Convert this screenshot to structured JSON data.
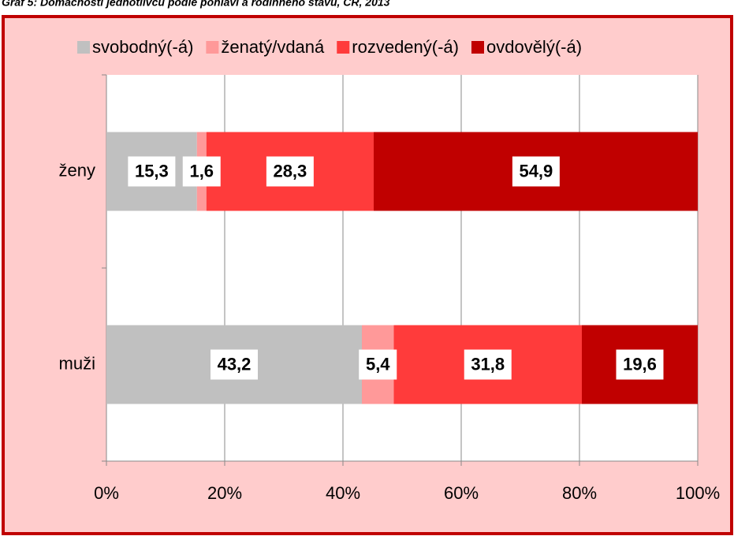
{
  "chart_data": {
    "type": "stacked_bar_horizontal",
    "title": "Graf 5: Domácnosti jednotlivců podle pohlaví a rodinného stavu, ČR, 2013",
    "categories": [
      "ženy",
      "muži"
    ],
    "series": [
      {
        "name": "svobodný(-á)",
        "color": "#c0c0c0",
        "values": [
          15.3,
          43.2
        ],
        "value_labels": [
          "15,3",
          "43,2"
        ]
      },
      {
        "name": "ženatý/vdaná",
        "color": "#ff9999",
        "values": [
          1.6,
          5.4
        ],
        "value_labels": [
          "1,6",
          "5,4"
        ]
      },
      {
        "name": "rozvedený(-á)",
        "color": "#ff3b3b",
        "values": [
          28.3,
          31.8
        ],
        "value_labels": [
          "28,3",
          "31,8"
        ]
      },
      {
        "name": "ovdovělý(-á)",
        "color": "#c00000",
        "values": [
          54.9,
          19.6
        ],
        "value_labels": [
          "54,9",
          "19,6"
        ]
      }
    ],
    "xlim": [
      0,
      100
    ],
    "xticks": [
      {
        "value": 0,
        "label": "0%"
      },
      {
        "value": 20,
        "label": "20%"
      },
      {
        "value": 40,
        "label": "40%"
      },
      {
        "value": 60,
        "label": "60%"
      },
      {
        "value": 80,
        "label": "80%"
      },
      {
        "value": 100,
        "label": "100%"
      }
    ],
    "grid": true,
    "legend": "top"
  }
}
